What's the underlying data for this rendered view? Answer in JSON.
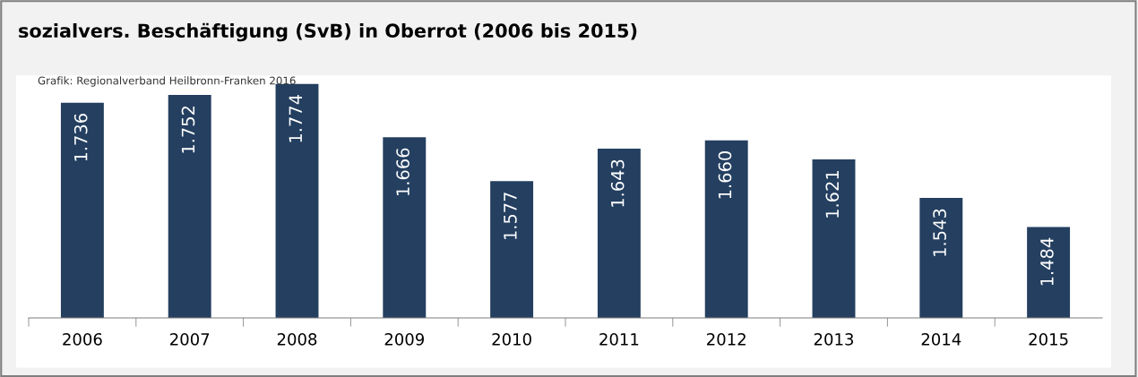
{
  "chart_data": {
    "type": "bar",
    "title": "sozialvers. Beschäftigung (SvB) in Oberrot (2006 bis 2015)",
    "annotations": [
      "Grafik: Regionalverband Heilbronn-Franken 2016"
    ],
    "categories": [
      "2006",
      "2007",
      "2008",
      "2009",
      "2010",
      "2011",
      "2012",
      "2013",
      "2014",
      "2015"
    ],
    "values": [
      1736,
      1752,
      1774,
      1666,
      1577,
      1643,
      1660,
      1621,
      1543,
      1484
    ],
    "value_labels": [
      "1.736",
      "1.752",
      "1.774",
      "1.666",
      "1.577",
      "1.643",
      "1.660",
      "1.621",
      "1.543",
      "1.484"
    ],
    "color": "#243f60",
    "ylim": [
      1300,
      1790
    ],
    "tick_labels": "x",
    "grid": false,
    "legend": false
  }
}
